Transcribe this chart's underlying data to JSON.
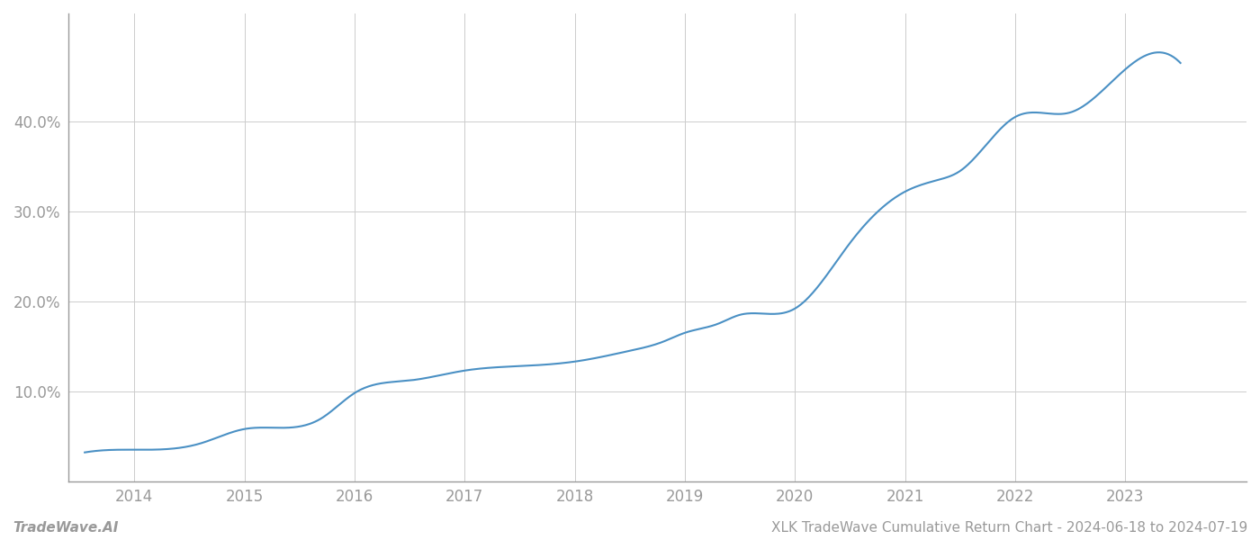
{
  "title": "XLK TradeWave Cumulative Return Chart - 2024-06-18 to 2024-07-19",
  "watermark": "TradeWave.AI",
  "line_color": "#4a90c4",
  "background_color": "#ffffff",
  "grid_color": "#cccccc",
  "x_years": [
    2014,
    2015,
    2016,
    2017,
    2018,
    2019,
    2020,
    2021,
    2022,
    2023
  ],
  "key_x": [
    2013.55,
    2014.0,
    2014.6,
    2015.0,
    2015.7,
    2016.0,
    2016.5,
    2017.0,
    2017.5,
    2018.0,
    2018.5,
    2018.8,
    2019.0,
    2019.3,
    2019.5,
    2020.0,
    2020.5,
    2021.0,
    2021.3,
    2021.5,
    2022.0,
    2022.5,
    2023.0,
    2023.5
  ],
  "key_y": [
    3.2,
    3.5,
    4.2,
    5.8,
    7.0,
    9.8,
    11.2,
    12.3,
    12.8,
    13.3,
    14.5,
    15.5,
    16.5,
    17.5,
    18.5,
    19.2,
    26.5,
    32.2,
    33.5,
    34.5,
    40.5,
    41.0,
    45.8,
    46.5
  ],
  "ylim": [
    0,
    52
  ],
  "yticks": [
    10.0,
    20.0,
    30.0,
    40.0
  ],
  "xlim": [
    2013.4,
    2024.1
  ],
  "tick_label_color": "#999999",
  "axis_color": "#999999",
  "footer_text_color": "#999999",
  "line_width": 1.5
}
